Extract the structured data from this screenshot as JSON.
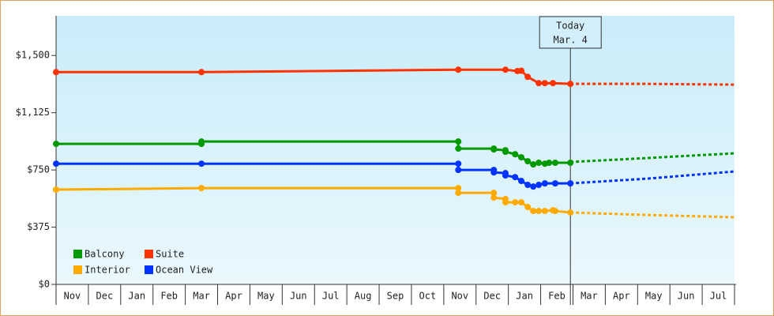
{
  "chart_data": {
    "type": "line",
    "categories": [
      "Nov",
      "Dec",
      "Jan",
      "Feb",
      "Mar",
      "Apr",
      "May",
      "Jun",
      "Jul",
      "Aug",
      "Sep",
      "Oct",
      "Nov",
      "Dec",
      "Jan",
      "Feb",
      "Mar",
      "Apr",
      "May",
      "Jun",
      "Jul"
    ],
    "xlim": [
      0,
      21
    ],
    "ylim": [
      0,
      1760
    ],
    "yticks": [
      {
        "value": 0,
        "label": "$0"
      },
      {
        "value": 375,
        "label": "$375"
      },
      {
        "value": 750,
        "label": "$750"
      },
      {
        "value": 1125,
        "label": "$1,125"
      },
      {
        "value": 1500,
        "label": "$1,500"
      }
    ],
    "series": [
      {
        "name": "Balcony",
        "color": "#009900",
        "x": [
          0,
          4.5,
          4.5,
          12.45,
          12.45,
          13.55,
          13.55,
          13.91,
          13.91,
          14.21,
          14.4,
          14.6,
          14.77,
          14.94,
          15.13,
          15.26,
          15.45,
          15.92
        ],
        "values": [
          921,
          921,
          936,
          936,
          890,
          890,
          884,
          879,
          869,
          853,
          833,
          807,
          786,
          797,
          791,
          797,
          797,
          797
        ],
        "forecast_x": [
          15.92,
          18.31,
          21
        ],
        "forecast_values": [
          802,
          828,
          859
        ]
      },
      {
        "name": "Suite",
        "color": "#ff3300",
        "x": [
          0,
          4.5,
          12.45,
          13.91,
          14.28,
          14.4,
          14.6,
          14.94,
          15.13,
          15.38,
          15.92
        ],
        "values": [
          1391,
          1391,
          1407,
          1407,
          1398,
          1400,
          1360,
          1319,
          1319,
          1319,
          1314
        ],
        "forecast_x": [
          15.92,
          18.31,
          21
        ],
        "forecast_values": [
          1314,
          1314,
          1309
        ]
      },
      {
        "name": "Interior",
        "color": "#ffaa00",
        "x": [
          0,
          4.5,
          12.45,
          12.45,
          13.55,
          13.55,
          13.91,
          13.91,
          14.21,
          14.4,
          14.6,
          14.77,
          14.94,
          15.13,
          15.38,
          15.45,
          15.92
        ],
        "values": [
          621,
          631,
          631,
          600,
          600,
          569,
          559,
          538,
          538,
          538,
          507,
          481,
          481,
          481,
          486,
          481,
          471
        ],
        "forecast_x": [
          15.92,
          18.31,
          21
        ],
        "forecast_values": [
          471,
          455,
          440
        ]
      },
      {
        "name": "Ocean View",
        "color": "#0033ff",
        "x": [
          0,
          4.5,
          12.45,
          12.45,
          13.55,
          13.55,
          13.91,
          13.91,
          14.21,
          14.4,
          14.6,
          14.77,
          14.94,
          15.13,
          15.45,
          15.92
        ],
        "values": [
          791,
          791,
          791,
          750,
          750,
          734,
          729,
          714,
          703,
          678,
          652,
          641,
          652,
          662,
          662,
          662
        ],
        "forecast_x": [
          15.92,
          18.31,
          21
        ],
        "forecast_values": [
          662,
          693,
          740
        ]
      }
    ],
    "annotation": {
      "lines": [
        "Today",
        "Mar. 4"
      ],
      "x": 15.92
    }
  }
}
